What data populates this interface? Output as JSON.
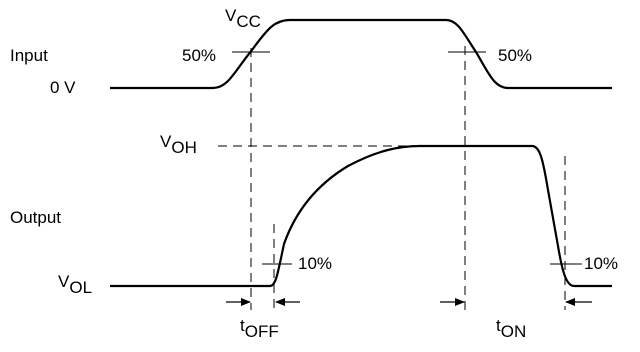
{
  "input": {
    "label": "Input",
    "high_rail": {
      "main": "V",
      "sub": "CC"
    },
    "low_rail": "0 V",
    "threshold_rise": "50%",
    "threshold_fall": "50%"
  },
  "output": {
    "label": "Output",
    "high_level": {
      "main": "V",
      "sub": "OH"
    },
    "low_level": {
      "main": "V",
      "sub": "OL"
    },
    "threshold_rise": "10%",
    "threshold_fall": "10%"
  },
  "timing": {
    "off": {
      "main": "t",
      "sub": "OFF"
    },
    "on": {
      "main": "t",
      "sub": "ON"
    }
  }
}
